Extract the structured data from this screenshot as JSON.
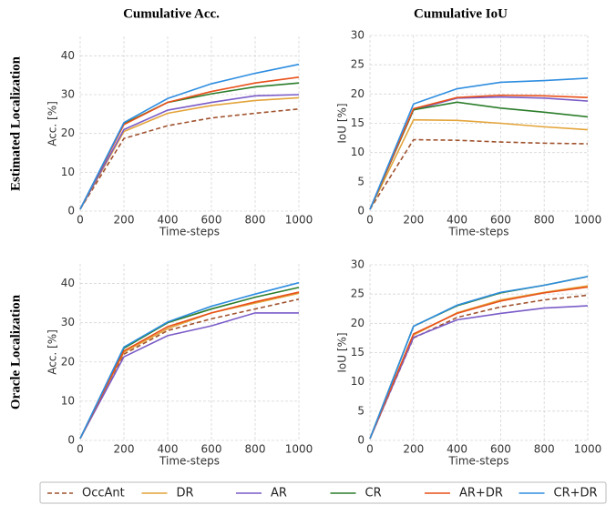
{
  "figure": {
    "row_labels": [
      "Estimated Localization",
      "Oracle Localization"
    ]
  },
  "legend": [
    {
      "name": "OccAnt",
      "color": "#a0522d",
      "dashed": true
    },
    {
      "name": "DR",
      "color": "#e3a43a",
      "dashed": false
    },
    {
      "name": "AR",
      "color": "#7a5cc8",
      "dashed": false
    },
    {
      "name": "CR",
      "color": "#2b7d2b",
      "dashed": false
    },
    {
      "name": "AR+DR",
      "color": "#e8501a",
      "dashed": false
    },
    {
      "name": "CR+DR",
      "color": "#2e8de0",
      "dashed": false
    }
  ],
  "chart_data": [
    {
      "type": "line",
      "title": "Cumulative Acc.",
      "xlabel": "Time-steps",
      "ylabel": "Acc. [%]",
      "x": [
        0,
        200,
        400,
        600,
        800,
        1000
      ],
      "xlim": [
        0,
        1000
      ],
      "xticks": [
        0,
        200,
        400,
        600,
        800,
        1000
      ],
      "ylim": [
        0,
        45
      ],
      "yticks": [
        0,
        10,
        20,
        30,
        40
      ],
      "grid": true,
      "series": [
        {
          "values": [
            0.5,
            18.7,
            22,
            24,
            25.2,
            26.3
          ]
        },
        {
          "values": [
            0.5,
            20.5,
            25.2,
            27.2,
            28.5,
            29.2
          ]
        },
        {
          "values": [
            0.5,
            21,
            26,
            28,
            29.7,
            30
          ]
        },
        {
          "values": [
            0.5,
            22.5,
            28,
            30.2,
            32,
            33
          ]
        },
        {
          "values": [
            0.5,
            22.3,
            28,
            30.8,
            33,
            34.5
          ]
        },
        {
          "values": [
            0.5,
            22.8,
            29,
            32.8,
            35.5,
            37.8
          ]
        }
      ]
    },
    {
      "type": "line",
      "title": "Cumulative IoU",
      "xlabel": "Time-steps",
      "ylabel": "IoU [%]",
      "x": [
        0,
        200,
        400,
        600,
        800,
        1000
      ],
      "xlim": [
        0,
        1000
      ],
      "xticks": [
        0,
        200,
        400,
        600,
        800,
        1000
      ],
      "ylim": [
        0,
        30
      ],
      "yticks": [
        0,
        5,
        10,
        15,
        20,
        25,
        30
      ],
      "grid": true,
      "series": [
        {
          "values": [
            0.3,
            12.2,
            12.1,
            11.8,
            11.6,
            11.5
          ]
        },
        {
          "values": [
            0.3,
            15.6,
            15.5,
            15,
            14.4,
            13.9
          ]
        },
        {
          "values": [
            0.3,
            17.3,
            19.3,
            19.5,
            19.3,
            18.8
          ]
        },
        {
          "values": [
            0.3,
            17.3,
            18.6,
            17.6,
            16.9,
            16.1
          ]
        },
        {
          "values": [
            0.3,
            17.5,
            19.4,
            19.8,
            19.7,
            19.4
          ]
        },
        {
          "values": [
            0.3,
            18.3,
            20.9,
            22,
            22.3,
            22.7
          ]
        }
      ]
    },
    {
      "type": "line",
      "xlabel": "Time-steps",
      "ylabel": "Acc. [%]",
      "x": [
        0,
        200,
        400,
        600,
        800,
        1000
      ],
      "xlim": [
        0,
        1000
      ],
      "xticks": [
        0,
        200,
        400,
        600,
        800,
        1000
      ],
      "ylim": [
        0,
        45
      ],
      "yticks": [
        0,
        10,
        20,
        30,
        40
      ],
      "grid": true,
      "series": [
        {
          "values": [
            0.5,
            22,
            28,
            31,
            33.5,
            36
          ]
        },
        {
          "values": [
            0.5,
            22.5,
            28.5,
            32.5,
            35,
            37.5
          ]
        },
        {
          "values": [
            0.5,
            21.3,
            26.7,
            29.2,
            32.5,
            32.5
          ]
        },
        {
          "values": [
            0.5,
            23.5,
            30,
            33.5,
            36.5,
            39
          ]
        },
        {
          "values": [
            0.5,
            22.8,
            29,
            32.5,
            35.3,
            37.8
          ]
        },
        {
          "values": [
            0.5,
            23.8,
            30.2,
            34.2,
            37.3,
            40.2
          ]
        }
      ]
    },
    {
      "type": "line",
      "xlabel": "Time-steps",
      "ylabel": "IoU [%]",
      "x": [
        0,
        200,
        400,
        600,
        800,
        1000
      ],
      "xlim": [
        0,
        1000
      ],
      "xticks": [
        0,
        200,
        400,
        600,
        800,
        1000
      ],
      "ylim": [
        0,
        30
      ],
      "yticks": [
        0,
        5,
        10,
        15,
        20,
        25,
        30
      ],
      "grid": true,
      "series": [
        {
          "values": [
            0.3,
            17.5,
            21,
            22.8,
            24,
            24.8
          ]
        },
        {
          "values": [
            0.3,
            18,
            21.8,
            24,
            25.3,
            26.4
          ]
        },
        {
          "values": [
            0.3,
            17.6,
            20.6,
            21.7,
            22.6,
            23
          ]
        },
        {
          "values": [
            0.3,
            19.5,
            23,
            25.2,
            26.5,
            28
          ]
        },
        {
          "values": [
            0.3,
            18.2,
            21.7,
            23.8,
            25.2,
            26.2
          ]
        },
        {
          "values": [
            0.3,
            19.5,
            23.1,
            25.3,
            26.5,
            28
          ]
        }
      ]
    }
  ]
}
